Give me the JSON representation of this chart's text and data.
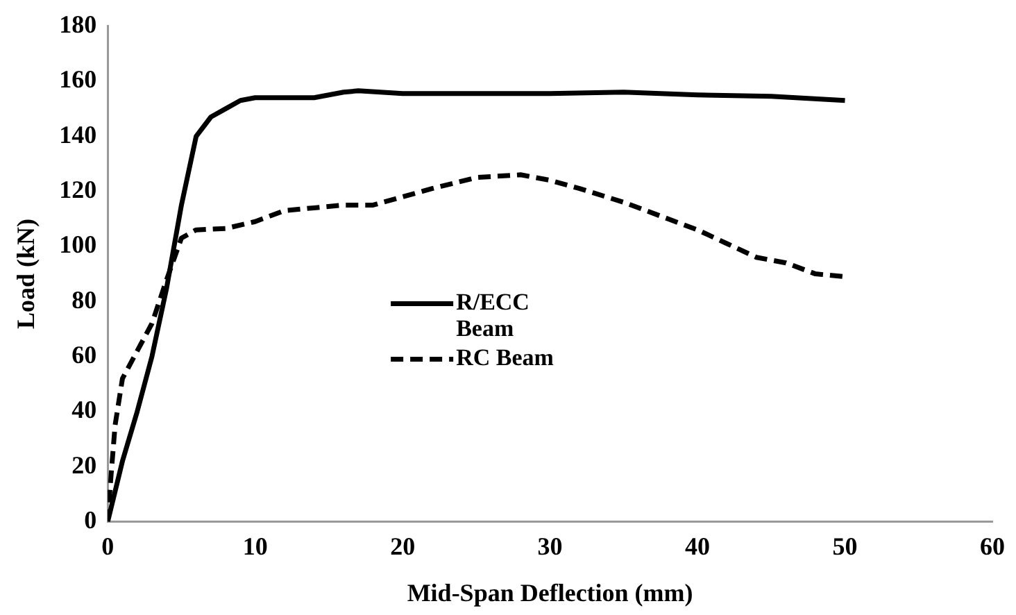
{
  "chart_data": {
    "type": "line",
    "xlabel": "Mid-Span Deflection (mm)",
    "ylabel": "Load (kN)",
    "xlim": [
      0,
      60
    ],
    "xticks": [
      0,
      10,
      20,
      30,
      40,
      50,
      60
    ],
    "ylim": [
      0,
      180
    ],
    "yticks": [
      0,
      20,
      40,
      60,
      80,
      100,
      120,
      140,
      160,
      180
    ],
    "grid": false,
    "legend": "center",
    "marker": "none",
    "series": [
      {
        "name": "R/ECC Beam",
        "color": "#000000",
        "line_style": "solid",
        "x": [
          0,
          1,
          2,
          3,
          4,
          5,
          6,
          7,
          8,
          9,
          10,
          12,
          14,
          16,
          17,
          20,
          30,
          35,
          40,
          45,
          50
        ],
        "values": [
          0,
          22,
          40,
          60,
          85,
          115,
          140,
          147,
          150,
          153,
          154,
          154,
          154,
          156,
          156.5,
          155.5,
          155.5,
          156,
          155,
          154.5,
          153
        ]
      },
      {
        "name": "RC Beam",
        "color": "#000000",
        "line_style": "dashed",
        "x": [
          0,
          0.2,
          0.5,
          1,
          2,
          3,
          4,
          5,
          6,
          8,
          10,
          12,
          14,
          16,
          18,
          20,
          22,
          25,
          28,
          30,
          32,
          35,
          38,
          40,
          42,
          44,
          46,
          48,
          50
        ],
        "values": [
          0,
          15,
          35,
          52,
          62,
          72,
          88,
          103,
          106,
          106.5,
          109,
          113,
          114,
          115,
          115,
          118,
          121,
          125,
          126,
          124,
          121,
          116,
          110,
          106,
          101,
          96,
          94,
          90,
          89
        ]
      }
    ]
  }
}
